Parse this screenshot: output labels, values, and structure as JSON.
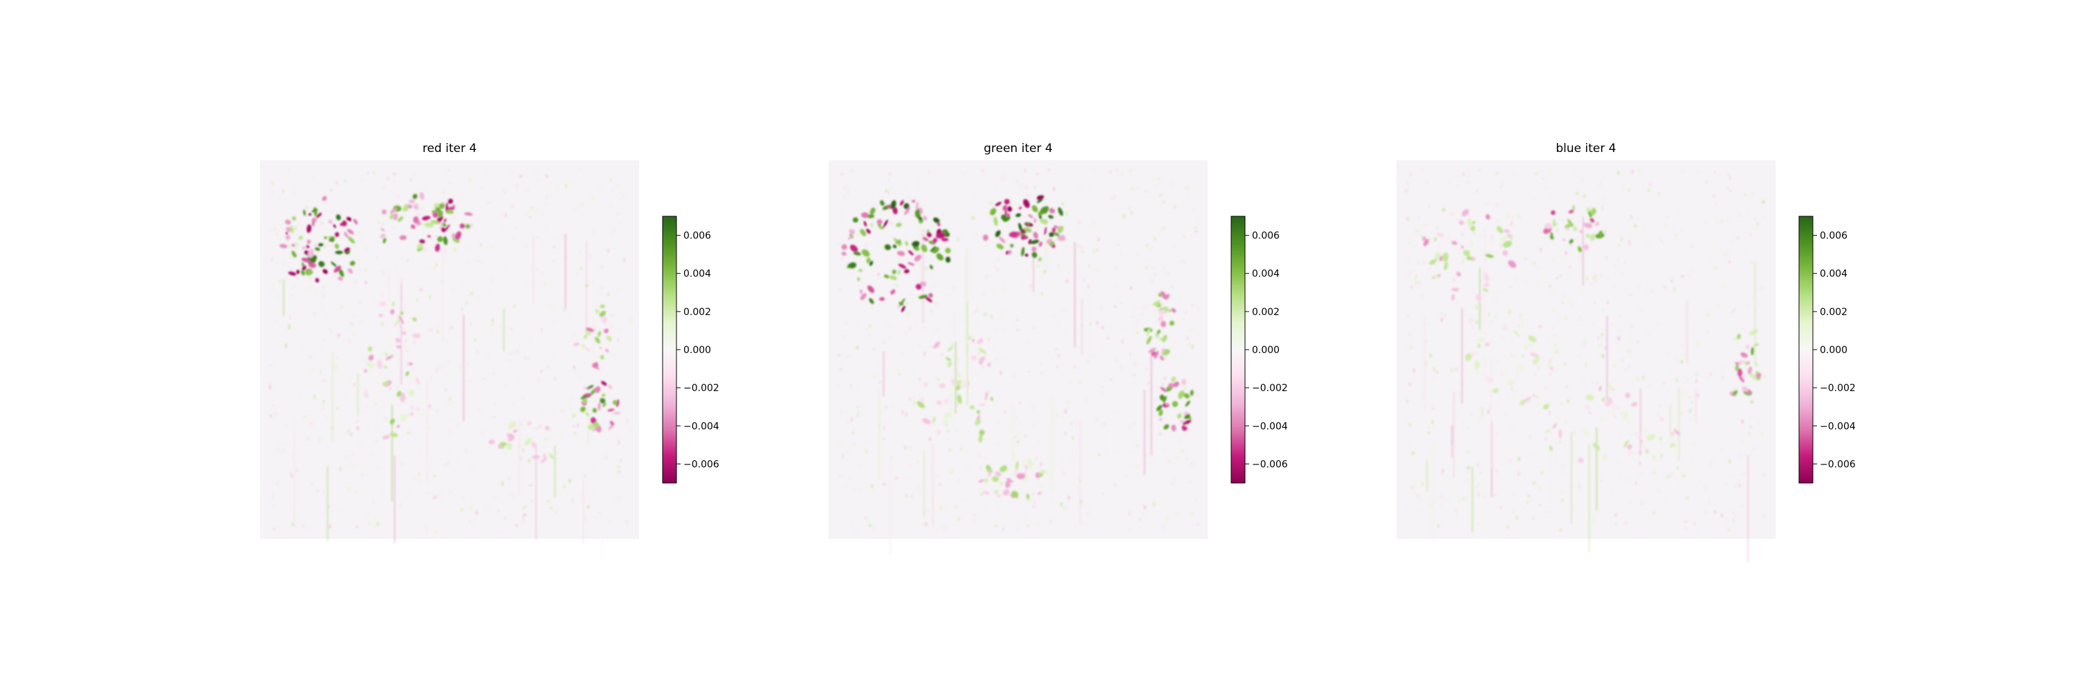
{
  "colors": {
    "background": "#ffffff",
    "heatmap_base": "#f5f3f5",
    "positive": "#276419",
    "negative": "#8e0152"
  },
  "chart_data": [
    {
      "type": "heatmap",
      "title": "red iter 4",
      "colormap": "PiYG",
      "clim": [
        -0.007,
        0.007
      ],
      "colorbar_ticks": [
        {
          "value": 0.006,
          "label": "0.006"
        },
        {
          "value": 0.004,
          "label": "0.004"
        },
        {
          "value": 0.002,
          "label": "0.002"
        },
        {
          "value": 0.0,
          "label": "0.000"
        },
        {
          "value": -0.002,
          "label": "−0.002"
        },
        {
          "value": -0.004,
          "label": "−0.004"
        },
        {
          "value": -0.006,
          "label": "−0.006"
        }
      ],
      "axes_visible": false
    },
    {
      "type": "heatmap",
      "title": "green iter 4",
      "colormap": "PiYG",
      "clim": [
        -0.007,
        0.007
      ],
      "colorbar_ticks": [
        {
          "value": 0.006,
          "label": "0.006"
        },
        {
          "value": 0.004,
          "label": "0.004"
        },
        {
          "value": 0.002,
          "label": "0.002"
        },
        {
          "value": 0.0,
          "label": "0.000"
        },
        {
          "value": -0.002,
          "label": "−0.002"
        },
        {
          "value": -0.004,
          "label": "−0.004"
        },
        {
          "value": -0.006,
          "label": "−0.006"
        }
      ],
      "axes_visible": false
    },
    {
      "type": "heatmap",
      "title": "blue iter 4",
      "colormap": "PiYG",
      "clim": [
        -0.007,
        0.007
      ],
      "colorbar_ticks": [
        {
          "value": 0.006,
          "label": "0.006"
        },
        {
          "value": 0.004,
          "label": "0.004"
        },
        {
          "value": 0.002,
          "label": "0.002"
        },
        {
          "value": 0.0,
          "label": "0.000"
        },
        {
          "value": -0.002,
          "label": "−0.002"
        },
        {
          "value": -0.004,
          "label": "−0.004"
        },
        {
          "value": -0.006,
          "label": "−0.006"
        }
      ],
      "axes_visible": false
    }
  ]
}
